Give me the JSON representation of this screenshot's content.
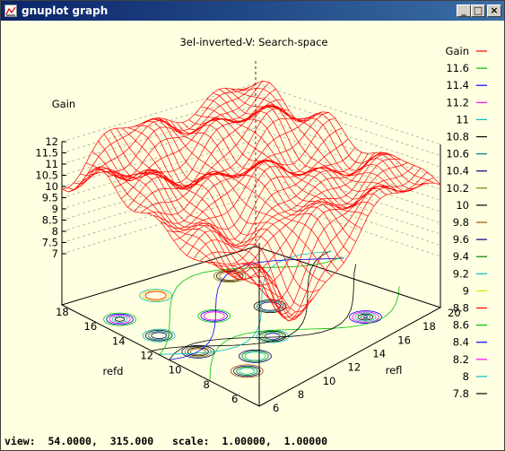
{
  "window": {
    "title": "gnuplot graph",
    "buttons": {
      "minimize": "_",
      "maximize": "□",
      "close": "×"
    }
  },
  "status": {
    "view_label": "view:",
    "view_values": "54.0000,  315.000",
    "scale_label": "scale:",
    "scale_values": "1.00000,  1.00000"
  },
  "chart_data": {
    "type": "surface3d",
    "title": "3el-inverted-V: Search-space",
    "zlabel": "Gain",
    "xlabel": "refd",
    "ylabel": "refl",
    "z_ticks": [
      "7",
      "7.5",
      "8",
      "8.5",
      "9",
      "9.5",
      "10",
      "10.5",
      "11",
      "11.5",
      "12"
    ],
    "x_ticks": [
      "6",
      "8",
      "10",
      "12",
      "14",
      "16",
      "18"
    ],
    "y_ticks": [
      "6",
      "8",
      "10",
      "12",
      "14",
      "16",
      "18",
      "20"
    ],
    "zlim": [
      7,
      12
    ],
    "surface_color": "#ff0000",
    "legend": {
      "placement": "right",
      "entries": [
        {
          "label": "Gain",
          "color": "#ff0000"
        },
        {
          "label": "11.6",
          "color": "#00c000"
        },
        {
          "label": "11.4",
          "color": "#0000ff"
        },
        {
          "label": "11.2",
          "color": "#ff00ff"
        },
        {
          "label": "11",
          "color": "#00c0c0"
        },
        {
          "label": "10.8",
          "color": "#000000"
        },
        {
          "label": "10.6",
          "color": "#008080"
        },
        {
          "label": "10.4",
          "color": "#000080"
        },
        {
          "label": "10.2",
          "color": "#808000"
        },
        {
          "label": "10",
          "color": "#000000"
        },
        {
          "label": "9.8",
          "color": "#a05000"
        },
        {
          "label": "9.6",
          "color": "#000080"
        },
        {
          "label": "9.4",
          "color": "#008000"
        },
        {
          "label": "9.2",
          "color": "#00c0c0"
        },
        {
          "label": "9",
          "color": "#e0e000"
        },
        {
          "label": "8.8",
          "color": "#ff0000"
        },
        {
          "label": "8.6",
          "color": "#00c000"
        },
        {
          "label": "8.4",
          "color": "#0000ff"
        },
        {
          "label": "8.2",
          "color": "#ff00ff"
        },
        {
          "label": "8",
          "color": "#00c0c0"
        },
        {
          "label": "7.8",
          "color": "#000000"
        }
      ]
    },
    "grid": true
  }
}
